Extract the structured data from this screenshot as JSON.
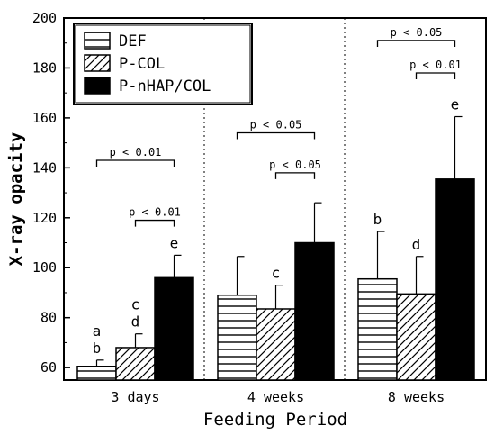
{
  "chart_data": {
    "type": "bar",
    "xlabel": "Feeding Period",
    "ylabel": "X-ray opacity",
    "ylim": [
      55,
      200
    ],
    "yticks": [
      60,
      80,
      100,
      120,
      140,
      160,
      180,
      200
    ],
    "categories": [
      "3 days",
      "4 weeks",
      "8 weeks"
    ],
    "legend_position": "top-left",
    "series": [
      {
        "name": "DEF",
        "pattern": "horizontal-lines",
        "color": "#ffffff",
        "values": [
          60.5,
          89,
          95.5
        ],
        "errors": [
          2.5,
          15.5,
          19
        ],
        "letters": [
          [
            "a",
            "b"
          ],
          [],
          [
            "b"
          ]
        ]
      },
      {
        "name": "P-COL",
        "pattern": "diagonal-hatch",
        "color": "#ffffff",
        "values": [
          68,
          83.5,
          89.5
        ],
        "errors": [
          5.5,
          9.5,
          15
        ],
        "letters": [
          [
            "c",
            "d"
          ],
          [
            "c"
          ],
          [
            "d"
          ]
        ]
      },
      {
        "name": "P-nHAP/COL",
        "pattern": "solid",
        "color": "#000000",
        "values": [
          96,
          110,
          135.5
        ],
        "errors": [
          9,
          16,
          25
        ],
        "letters": [
          [
            "e"
          ],
          [],
          [
            "e"
          ]
        ]
      }
    ],
    "annotations": [
      {
        "text": "p < 0.01",
        "group": 0,
        "from": 0,
        "to": 2,
        "y": 143
      },
      {
        "text": "p < 0.01",
        "group": 0,
        "from": 1,
        "to": 2,
        "y": 119
      },
      {
        "text": "p < 0.05",
        "group": 1,
        "from": 0,
        "to": 2,
        "y": 154
      },
      {
        "text": "p < 0.05",
        "group": 1,
        "from": 1,
        "to": 2,
        "y": 138
      },
      {
        "text": "p < 0.05",
        "group": 2,
        "from": 0,
        "to": 2,
        "y": 191
      },
      {
        "text": "p < 0.01",
        "group": 2,
        "from": 1,
        "to": 2,
        "y": 178
      }
    ]
  }
}
